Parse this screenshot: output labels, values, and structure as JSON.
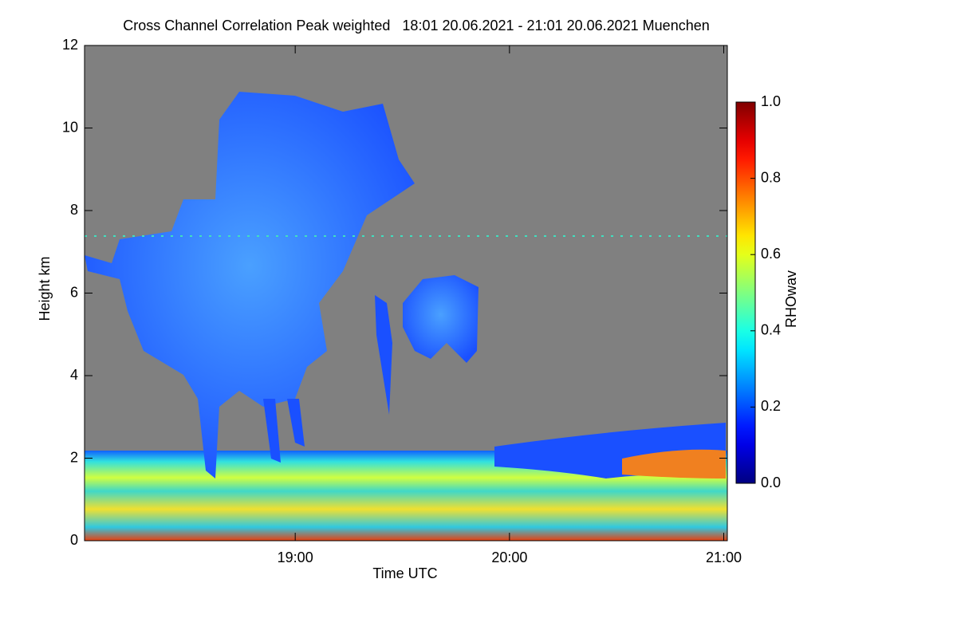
{
  "chart_data": {
    "type": "heatmap",
    "title": "Cross Channel Correlation Peak weighted   18:01 20.06.2021 - 21:01 20.06.2021 Muenchen",
    "x_label": "Time UTC",
    "y_label": "Height km",
    "xlim": [
      18.0167,
      21.0167
    ],
    "xticks": [
      {
        "value": 19,
        "label": "19:00"
      },
      {
        "value": 20,
        "label": "20:00"
      },
      {
        "value": 21,
        "label": "21:00"
      }
    ],
    "ylim": [
      0,
      12
    ],
    "yticks": [
      0,
      2,
      4,
      6,
      8,
      10,
      12
    ],
    "colorbar_label": "RHOwav",
    "clim": [
      0,
      1
    ],
    "cticks": [
      {
        "value": 0,
        "label": "0.0"
      },
      {
        "value": 0.2,
        "label": "0.2"
      },
      {
        "value": 0.4,
        "label": "0.4"
      },
      {
        "value": 0.6,
        "label": "0.6"
      },
      {
        "value": 0.8,
        "label": "0.8"
      },
      {
        "value": 1,
        "label": "1.0"
      }
    ],
    "colormap": "jet"
  }
}
